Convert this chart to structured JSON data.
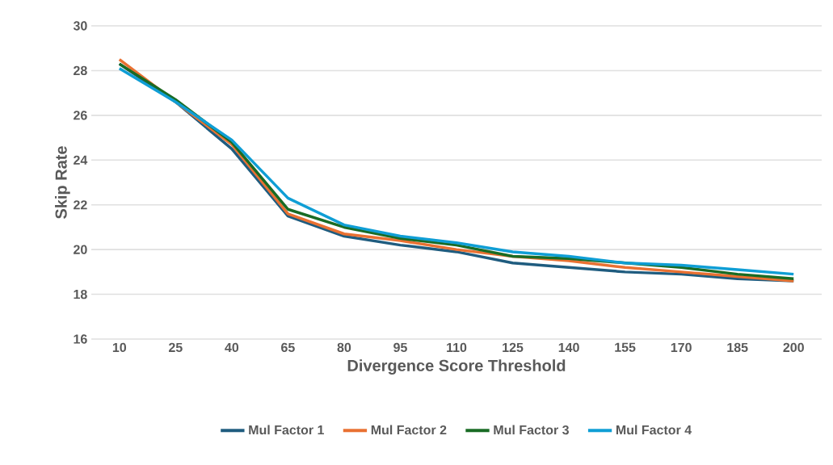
{
  "chart_data": {
    "type": "line",
    "xlabel": "Divergence Score Threshold",
    "ylabel": "Skip Rate",
    "categories": [
      "10",
      "25",
      "40",
      "65",
      "80",
      "95",
      "110",
      "125",
      "140",
      "155",
      "170",
      "185",
      "200"
    ],
    "series": [
      {
        "name": "Mul Factor 1",
        "color": "#1f5c7f",
        "values": [
          28.3,
          26.6,
          24.5,
          21.5,
          20.6,
          20.2,
          19.9,
          19.4,
          19.2,
          19.0,
          18.9,
          18.7,
          18.6
        ]
      },
      {
        "name": "Mul Factor 2",
        "color": "#e97132",
        "values": [
          28.5,
          26.6,
          24.7,
          21.6,
          20.7,
          20.4,
          20.0,
          19.7,
          19.5,
          19.2,
          19.0,
          18.8,
          18.6
        ]
      },
      {
        "name": "Mul Factor 3",
        "color": "#196b24",
        "values": [
          28.3,
          26.7,
          24.8,
          21.8,
          21.0,
          20.5,
          20.2,
          19.7,
          19.6,
          null,
          19.2,
          18.9,
          18.7
        ]
      },
      {
        "name": "Mul Factor 4",
        "color": "#0f9ed5",
        "values": [
          28.1,
          26.6,
          24.9,
          22.3,
          21.1,
          20.6,
          20.3,
          19.9,
          19.7,
          19.4,
          19.3,
          19.1,
          18.9
        ]
      }
    ],
    "ylim": [
      16,
      30
    ],
    "yticks": [
      16,
      18,
      20,
      22,
      24,
      26,
      28,
      30
    ],
    "grid": "y",
    "legend": "bottom",
    "marker": "none",
    "line_style": "solid"
  }
}
